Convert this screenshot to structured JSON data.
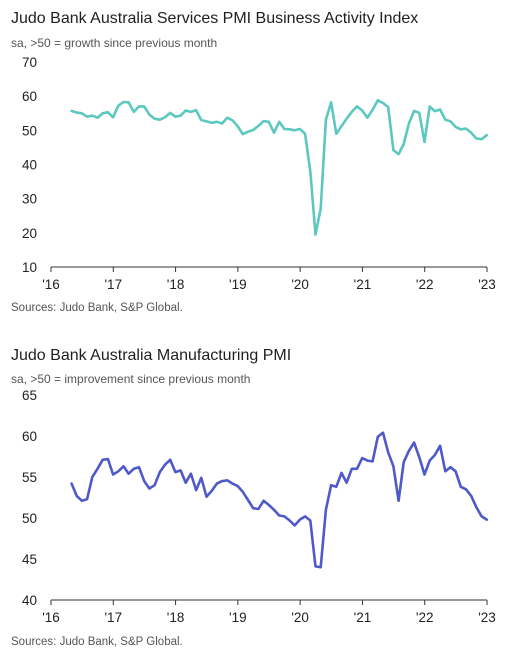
{
  "chart_data": [
    {
      "type": "line",
      "title": "Judo Bank Australia Services PMI Business Activity Index",
      "subtitle": "sa, >50 = growth since previous month",
      "source": "Sources: Judo Bank, S&P Global.",
      "ylim": [
        10,
        70
      ],
      "yticks": [
        10,
        20,
        30,
        40,
        50,
        60,
        70
      ],
      "xlim": [
        2016,
        2023
      ],
      "xticks": [
        2016,
        2017,
        2018,
        2019,
        2020,
        2021,
        2022,
        2023
      ],
      "xtick_labels": [
        "'16",
        "'17",
        "'18",
        "'19",
        "'20",
        "'21",
        "'22",
        "'23"
      ],
      "grid": false,
      "color": "#5cc8bf",
      "series": [
        {
          "x_start": 2016.33,
          "x_step": 0.0833333,
          "values": [
            55.7,
            55.2,
            55.0,
            54.0,
            54.3,
            53.7,
            55.0,
            55.3,
            53.8,
            57.2,
            58.3,
            58.2,
            55.4,
            57.0,
            57.0,
            54.6,
            53.4,
            53.1,
            53.8,
            55.1,
            54.0,
            54.3,
            55.8,
            55.4,
            55.9,
            53.0,
            52.6,
            52.2,
            52.5,
            52.0,
            53.7,
            52.9,
            51.2,
            48.9,
            49.6,
            50.1,
            51.3,
            52.7,
            52.5,
            49.3,
            52.5,
            50.4,
            50.3,
            50.0,
            50.4,
            49.0,
            38.0,
            19.5,
            27.1,
            53.1,
            58.2,
            49.0,
            51.2,
            53.4,
            55.4,
            57.0,
            55.8,
            53.7,
            56.0,
            58.8,
            58.0,
            56.8,
            44.2,
            43.0,
            46.0,
            52.0,
            55.7,
            55.1,
            46.6,
            57.0,
            55.6,
            56.1,
            53.1,
            52.6,
            51.0,
            50.3,
            50.5,
            49.3,
            47.6,
            47.4,
            48.6
          ]
        }
      ]
    },
    {
      "type": "line",
      "title": "Judo Bank Australia Manufacturing PMI",
      "subtitle": "sa, >50 = improvement since previous month",
      "source": "Sources: Judo Bank, S&P Global.",
      "ylim": [
        40,
        65
      ],
      "yticks": [
        40,
        45,
        50,
        55,
        60,
        65
      ],
      "xlim": [
        2016,
        2023
      ],
      "xticks": [
        2016,
        2017,
        2018,
        2019,
        2020,
        2021,
        2022,
        2023
      ],
      "xtick_labels": [
        "'16",
        "'17",
        "'18",
        "'19",
        "'20",
        "'21",
        "'22",
        "'23"
      ],
      "grid": false,
      "color": "#4f59c9",
      "series": [
        {
          "x_start": 2016.33,
          "x_step": 0.0833333,
          "values": [
            54.2,
            52.7,
            52.1,
            52.3,
            55.0,
            56.0,
            57.1,
            57.2,
            55.3,
            55.7,
            56.3,
            55.4,
            56.0,
            56.2,
            54.5,
            53.6,
            54.0,
            55.6,
            56.5,
            57.1,
            55.6,
            55.8,
            54.3,
            55.4,
            53.4,
            54.9,
            52.6,
            53.3,
            54.2,
            54.5,
            54.6,
            54.2,
            53.9,
            53.2,
            52.2,
            51.2,
            51.1,
            52.1,
            51.6,
            51.0,
            50.3,
            50.2,
            49.7,
            49.1,
            49.8,
            50.2,
            49.7,
            44.1,
            44.0,
            51.0,
            54.0,
            53.8,
            55.5,
            54.3,
            56.0,
            56.0,
            57.3,
            57.0,
            56.9,
            59.9,
            60.4,
            58.0,
            56.3,
            52.1,
            56.8,
            58.2,
            59.2,
            57.4,
            55.3,
            57.0,
            57.7,
            58.8,
            55.7,
            56.2,
            55.7,
            53.8,
            53.5,
            52.7,
            51.3,
            50.2,
            49.8
          ]
        }
      ]
    }
  ]
}
